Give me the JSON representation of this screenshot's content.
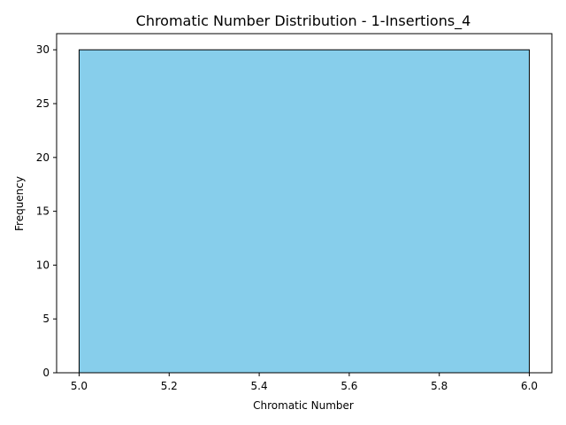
{
  "chart_data": {
    "type": "bar",
    "title": "Chromatic Number Distribution - 1-Insertions_4",
    "xlabel": "Chromatic Number",
    "ylabel": "Frequency",
    "bins": [
      {
        "x_start": 5.0,
        "x_end": 6.0,
        "value": 30
      }
    ],
    "xlim": [
      4.95,
      6.05
    ],
    "ylim": [
      0,
      31.5
    ],
    "x_ticks": [
      5.0,
      5.2,
      5.4,
      5.6,
      5.8,
      6.0
    ],
    "x_tick_labels": [
      "5.0",
      "5.2",
      "5.4",
      "5.6",
      "5.8",
      "6.0"
    ],
    "y_ticks": [
      0,
      5,
      10,
      15,
      20,
      25,
      30
    ],
    "y_tick_labels": [
      "0",
      "5",
      "10",
      "15",
      "20",
      "25",
      "30"
    ],
    "grid": false,
    "bar_color": "#87ceeb",
    "bar_edge_color": "#000000"
  }
}
